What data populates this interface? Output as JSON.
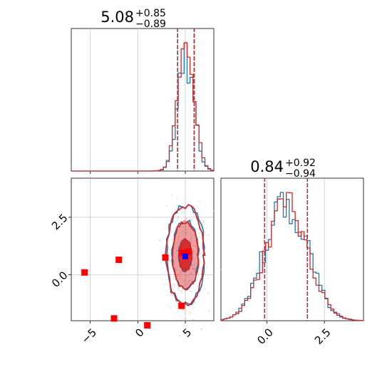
{
  "chart_data": {
    "type": "corner",
    "grid": true,
    "colors": {
      "blue": "#1f77b4",
      "red": "#d62728",
      "markers": "#ff0000",
      "truth": "#0000ff"
    },
    "panels": [
      {
        "name": "param1-hist",
        "type": "histogram",
        "title": {
          "median": "5.08",
          "plus": "+0.85",
          "minus": "−0.89"
        },
        "xlim": [
          -7.0,
          8.0
        ],
        "xticks": [
          -5,
          0,
          5
        ],
        "quantile_lines": [
          4.19,
          5.08,
          5.93
        ],
        "series": [
          {
            "name": "",
            "color": "#1f77b4",
            "mean": 5.05,
            "std": 0.85,
            "noise": 0.08
          },
          {
            "name": "",
            "color": "#d62728",
            "mean": 5.08,
            "std": 0.87,
            "noise": 0.06
          }
        ]
      },
      {
        "name": "param2-hist",
        "type": "histogram",
        "title": {
          "median": "0.84",
          "plus": "+0.92",
          "minus": "−0.94"
        },
        "xlim": [
          -2.0,
          4.2
        ],
        "xticks": [
          0.0,
          2.5
        ],
        "xtick_labels": [
          "0.0",
          "2.5"
        ],
        "quantile_lines": [
          -0.1,
          0.84,
          1.76
        ],
        "series": [
          {
            "name": "",
            "color": "#1f77b4",
            "mean": 0.84,
            "std": 0.93,
            "noise": 0.08
          },
          {
            "name": "",
            "color": "#d62728",
            "mean": 0.86,
            "std": 0.92,
            "noise": 0.07
          }
        ]
      },
      {
        "name": "joint-scatter",
        "type": "scatter-contour",
        "xlim": [
          -7.0,
          8.0
        ],
        "ylim": [
          -2.0,
          4.2
        ],
        "xticks": [
          -5,
          0,
          5
        ],
        "xtick_labels": [
          "−5",
          "0",
          "5"
        ],
        "yticks": [
          0.0,
          2.5
        ],
        "ytick_labels": [
          "0.0",
          "2.5"
        ],
        "contour_center": [
          5.0,
          0.85
        ],
        "contour_levels": [
          {
            "sx": 0.55,
            "sy": 0.6,
            "fill": "#d62728",
            "fill_opacity": 0.95
          },
          {
            "sx": 1.1,
            "sy": 1.3,
            "fill": "#d62728",
            "fill_opacity": 0.45
          },
          {
            "sx": 1.6,
            "sy": 1.9,
            "fill": "#d62728",
            "fill_opacity": 0.0
          }
        ],
        "markers": [
          {
            "x": -5.6,
            "y": 0.1
          },
          {
            "x": -2.0,
            "y": 0.65
          },
          {
            "x": -2.5,
            "y": -1.9
          },
          {
            "x": 1.0,
            "y": -2.2
          },
          {
            "x": 2.9,
            "y": 0.75
          },
          {
            "x": 4.6,
            "y": -1.35
          },
          {
            "x": 5.3,
            "y": 1.0
          },
          {
            "x": 4.7,
            "y": 0.95
          }
        ],
        "truth": {
          "x": 5.0,
          "y": 0.8
        }
      }
    ]
  }
}
